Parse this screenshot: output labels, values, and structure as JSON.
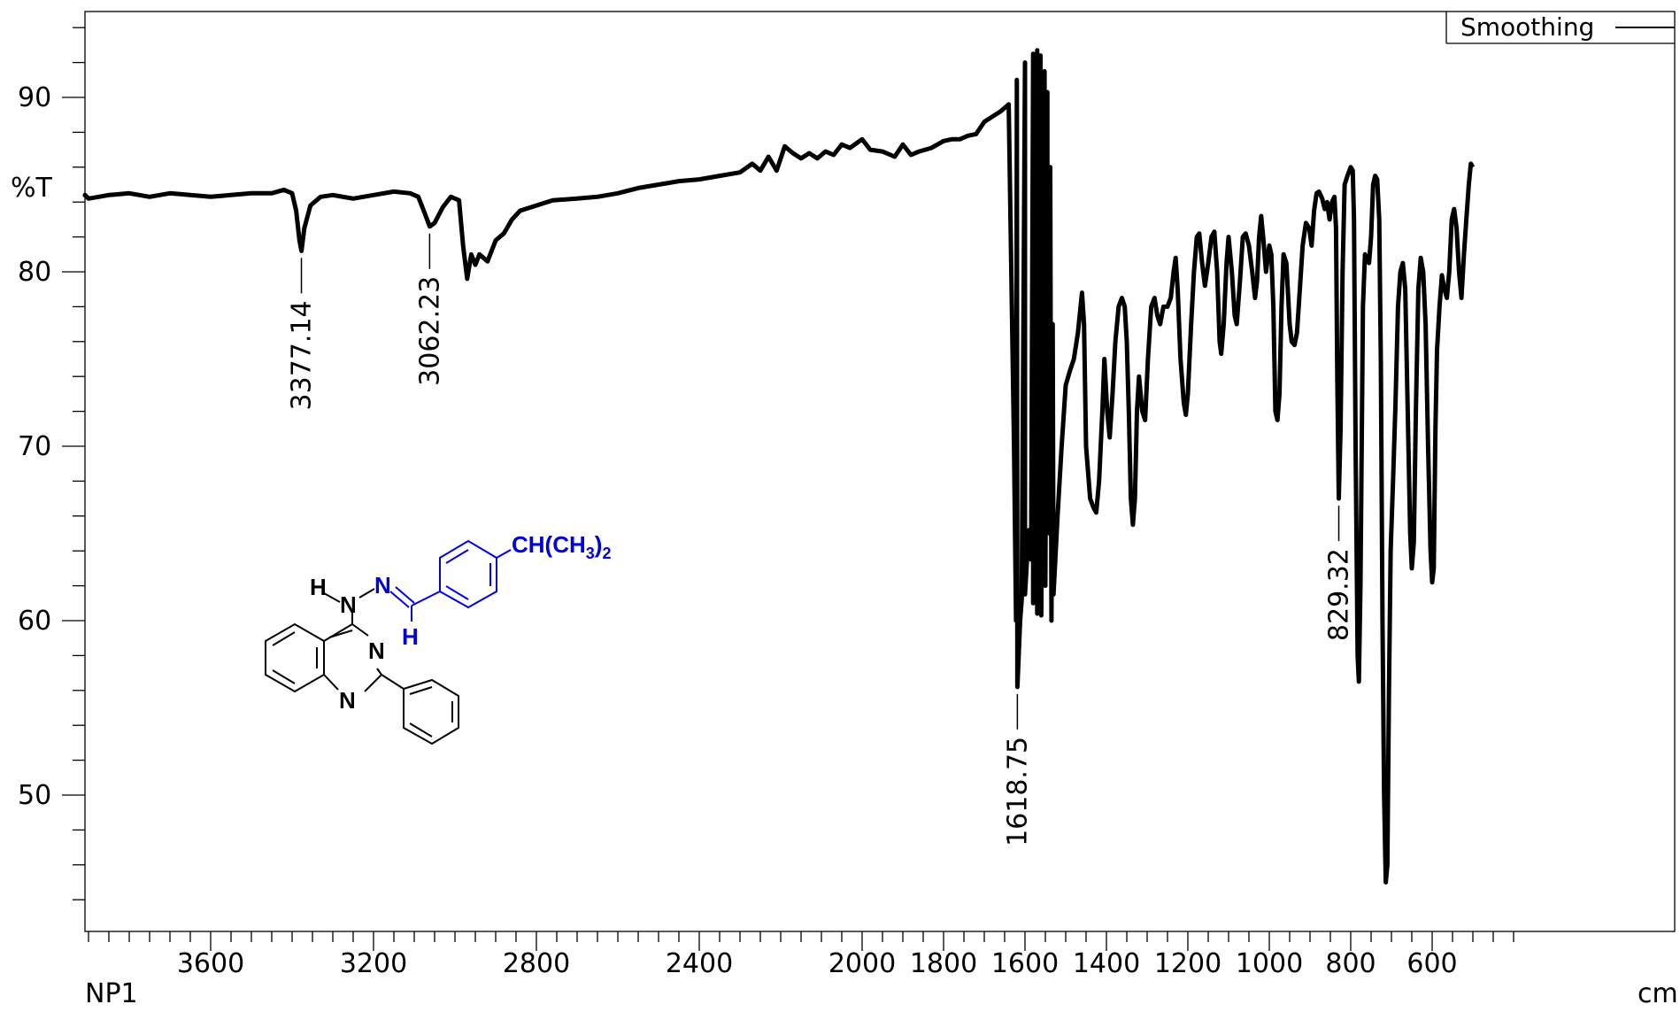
{
  "chart_data": {
    "type": "line",
    "ylabel": "%T",
    "xlabel": "cm",
    "sample_label": "NP1",
    "legend": {
      "label": "Smoothing",
      "placement": "top-right"
    },
    "xlim": [
      4000,
      400
    ],
    "ylim": [
      43,
      96
    ],
    "x_ticks": [
      3600,
      3200,
      2800,
      2400,
      2000,
      1800,
      1600,
      1400,
      1200,
      1000,
      800,
      600
    ],
    "x_tick_labels": [
      "3600",
      "3200",
      "2800",
      "2400",
      "2000",
      "1800",
      "1600",
      "1400",
      "1200",
      "1000",
      "800",
      "600"
    ],
    "y_ticks": [
      50,
      60,
      70,
      80,
      90
    ],
    "y_tick_labels": [
      "50",
      "60",
      "70",
      "80",
      "90"
    ],
    "grid": false,
    "series": [
      {
        "color": "#000000",
        "points": [
          [
            4000,
            84.3
          ],
          [
            3950,
            84.4
          ],
          [
            3900,
            84.2
          ],
          [
            3850,
            84.4
          ],
          [
            3800,
            84.5
          ],
          [
            3750,
            84.3
          ],
          [
            3700,
            84.5
          ],
          [
            3650,
            84.4
          ],
          [
            3600,
            84.3
          ],
          [
            3550,
            84.4
          ],
          [
            3500,
            84.5
          ],
          [
            3450,
            84.5
          ],
          [
            3420,
            84.7
          ],
          [
            3400,
            84.5
          ],
          [
            3390,
            83.5
          ],
          [
            3382,
            81.8
          ],
          [
            3377,
            81.2
          ],
          [
            3370,
            82.5
          ],
          [
            3355,
            83.8
          ],
          [
            3330,
            84.3
          ],
          [
            3300,
            84.4
          ],
          [
            3250,
            84.2
          ],
          [
            3200,
            84.4
          ],
          [
            3150,
            84.6
          ],
          [
            3110,
            84.5
          ],
          [
            3090,
            84.3
          ],
          [
            3075,
            83.4
          ],
          [
            3062,
            82.6
          ],
          [
            3050,
            82.8
          ],
          [
            3030,
            83.7
          ],
          [
            3010,
            84.3
          ],
          [
            2990,
            84.1
          ],
          [
            2980,
            81.5
          ],
          [
            2970,
            79.6
          ],
          [
            2960,
            81.0
          ],
          [
            2950,
            80.4
          ],
          [
            2940,
            81.0
          ],
          [
            2920,
            80.6
          ],
          [
            2900,
            81.8
          ],
          [
            2880,
            82.2
          ],
          [
            2860,
            83.0
          ],
          [
            2840,
            83.5
          ],
          [
            2800,
            83.8
          ],
          [
            2760,
            84.1
          ],
          [
            2700,
            84.2
          ],
          [
            2650,
            84.3
          ],
          [
            2600,
            84.5
          ],
          [
            2550,
            84.8
          ],
          [
            2500,
            85.0
          ],
          [
            2450,
            85.2
          ],
          [
            2400,
            85.3
          ],
          [
            2350,
            85.5
          ],
          [
            2300,
            85.7
          ],
          [
            2270,
            86.2
          ],
          [
            2250,
            85.8
          ],
          [
            2230,
            86.6
          ],
          [
            2210,
            85.8
          ],
          [
            2190,
            87.2
          ],
          [
            2170,
            86.8
          ],
          [
            2150,
            86.5
          ],
          [
            2130,
            86.8
          ],
          [
            2110,
            86.5
          ],
          [
            2090,
            86.9
          ],
          [
            2070,
            86.7
          ],
          [
            2050,
            87.3
          ],
          [
            2030,
            87.1
          ],
          [
            2000,
            87.6
          ],
          [
            1980,
            87.0
          ],
          [
            1950,
            86.9
          ],
          [
            1920,
            86.6
          ],
          [
            1900,
            87.3
          ],
          [
            1880,
            86.7
          ],
          [
            1860,
            86.9
          ],
          [
            1830,
            87.1
          ],
          [
            1800,
            87.5
          ],
          [
            1780,
            87.6
          ],
          [
            1760,
            87.6
          ],
          [
            1740,
            87.8
          ],
          [
            1720,
            87.9
          ],
          [
            1700,
            88.6
          ],
          [
            1680,
            88.9
          ],
          [
            1660,
            89.2
          ],
          [
            1640,
            89.6
          ],
          [
            1620,
            91.0
          ],
          [
            1600,
            92.0
          ],
          [
            1580,
            92.5
          ],
          [
            1570,
            92.7
          ],
          [
            1562,
            92.4
          ],
          [
            1552,
            91.5
          ],
          [
            1545,
            90.3
          ],
          [
            1538,
            86.0
          ],
          [
            1532,
            77.0
          ],
          [
            1627,
            70.0
          ],
          [
            1622,
            60.0
          ],
          [
            1618.75,
            56.2
          ],
          [
            1612,
            60.0
          ],
          [
            1608,
            61.2
          ],
          [
            1600,
            61.5
          ],
          [
            1595,
            63.5
          ],
          [
            1590,
            65.2
          ],
          [
            1585,
            63.5
          ],
          [
            1580,
            61.0
          ],
          [
            1570,
            60.4
          ],
          [
            1560,
            60.3
          ],
          [
            1550,
            62.0
          ],
          [
            1545,
            69.5
          ],
          [
            1540,
            65.0
          ],
          [
            1535,
            60.0
          ],
          [
            1530,
            61.5
          ],
          [
            1520,
            66.0
          ],
          [
            1510,
            70.0
          ],
          [
            1500,
            73.5
          ],
          [
            1490,
            74.3
          ],
          [
            1480,
            75.0
          ],
          [
            1470,
            76.5
          ],
          [
            1460,
            78.8
          ],
          [
            1455,
            77.0
          ],
          [
            1450,
            70.0
          ],
          [
            1440,
            67.0
          ],
          [
            1432,
            66.5
          ],
          [
            1425,
            66.2
          ],
          [
            1418,
            68.0
          ],
          [
            1410,
            72.0
          ],
          [
            1405,
            75.0
          ],
          [
            1398,
            72.0
          ],
          [
            1392,
            70.5
          ],
          [
            1385,
            73.0
          ],
          [
            1378,
            76.0
          ],
          [
            1370,
            78.0
          ],
          [
            1362,
            78.5
          ],
          [
            1355,
            78.0
          ],
          [
            1350,
            76.0
          ],
          [
            1345,
            72.0
          ],
          [
            1340,
            67.0
          ],
          [
            1335,
            65.5
          ],
          [
            1330,
            67.0
          ],
          [
            1325,
            72.0
          ],
          [
            1320,
            74.0
          ],
          [
            1312,
            72.0
          ],
          [
            1305,
            71.5
          ],
          [
            1298,
            75.0
          ],
          [
            1290,
            78.0
          ],
          [
            1282,
            78.5
          ],
          [
            1275,
            77.5
          ],
          [
            1268,
            77.0
          ],
          [
            1260,
            78.0
          ],
          [
            1250,
            78.0
          ],
          [
            1242,
            78.5
          ],
          [
            1235,
            80.0
          ],
          [
            1230,
            80.8
          ],
          [
            1225,
            79.0
          ],
          [
            1218,
            75.0
          ],
          [
            1210,
            72.5
          ],
          [
            1205,
            71.8
          ],
          [
            1200,
            73.0
          ],
          [
            1192,
            77.0
          ],
          [
            1185,
            80.0
          ],
          [
            1178,
            82.0
          ],
          [
            1172,
            82.2
          ],
          [
            1165,
            80.5
          ],
          [
            1158,
            79.2
          ],
          [
            1150,
            80.5
          ],
          [
            1142,
            82.0
          ],
          [
            1135,
            82.3
          ],
          [
            1128,
            80.0
          ],
          [
            1122,
            76.0
          ],
          [
            1118,
            75.3
          ],
          [
            1112,
            77.0
          ],
          [
            1105,
            80.5
          ],
          [
            1100,
            82.0
          ],
          [
            1092,
            80.0
          ],
          [
            1085,
            77.5
          ],
          [
            1080,
            77.0
          ],
          [
            1072,
            79.5
          ],
          [
            1065,
            82.0
          ],
          [
            1058,
            82.2
          ],
          [
            1050,
            81.5
          ],
          [
            1042,
            80.0
          ],
          [
            1035,
            78.5
          ],
          [
            1030,
            79.5
          ],
          [
            1025,
            82.0
          ],
          [
            1020,
            83.2
          ],
          [
            1015,
            82.0
          ],
          [
            1008,
            80.0
          ],
          [
            1000,
            81.5
          ],
          [
            995,
            81.0
          ],
          [
            990,
            78.0
          ],
          [
            985,
            72.0
          ],
          [
            980,
            71.5
          ],
          [
            975,
            73.0
          ],
          [
            970,
            78.0
          ],
          [
            965,
            81.0
          ],
          [
            958,
            80.5
          ],
          [
            950,
            77.0
          ],
          [
            945,
            76.0
          ],
          [
            938,
            75.8
          ],
          [
            932,
            76.5
          ],
          [
            925,
            79.0
          ],
          [
            918,
            81.5
          ],
          [
            910,
            82.8
          ],
          [
            902,
            82.5
          ],
          [
            896,
            81.5
          ],
          [
            890,
            83.5
          ],
          [
            884,
            84.5
          ],
          [
            878,
            84.6
          ],
          [
            870,
            84.2
          ],
          [
            864,
            83.6
          ],
          [
            858,
            84.0
          ],
          [
            852,
            83.0
          ],
          [
            846,
            84.0
          ],
          [
            840,
            84.3
          ],
          [
            836,
            82.5
          ],
          [
            833,
            74.0
          ],
          [
            829.32,
            67.0
          ],
          [
            825,
            71.0
          ],
          [
            820,
            80.0
          ],
          [
            815,
            85.0
          ],
          [
            808,
            85.5
          ],
          [
            800,
            86.0
          ],
          [
            795,
            85.8
          ],
          [
            792,
            83.0
          ],
          [
            788,
            70.0
          ],
          [
            783,
            58.0
          ],
          [
            780,
            56.5
          ],
          [
            776,
            62.0
          ],
          [
            770,
            78.0
          ],
          [
            765,
            81.0
          ],
          [
            760,
            80.8
          ],
          [
            755,
            80.5
          ],
          [
            750,
            82.0
          ],
          [
            745,
            85.0
          ],
          [
            740,
            85.5
          ],
          [
            735,
            85.3
          ],
          [
            730,
            83.0
          ],
          [
            726,
            75.0
          ],
          [
            722,
            60.0
          ],
          [
            718,
            50.0
          ],
          [
            714,
            45.0
          ],
          [
            710,
            46.0
          ],
          [
            706,
            56.0
          ],
          [
            702,
            64.0
          ],
          [
            696,
            68.0
          ],
          [
            690,
            72.5
          ],
          [
            684,
            78.0
          ],
          [
            678,
            80.0
          ],
          [
            672,
            80.5
          ],
          [
            666,
            79.0
          ],
          [
            660,
            72.0
          ],
          [
            654,
            65.0
          ],
          [
            650,
            63.0
          ],
          [
            645,
            64.5
          ],
          [
            640,
            72.0
          ],
          [
            634,
            79.0
          ],
          [
            628,
            80.8
          ],
          [
            622,
            80.0
          ],
          [
            616,
            77.0
          ],
          [
            610,
            70.0
          ],
          [
            604,
            64.0
          ],
          [
            600,
            62.2
          ],
          [
            596,
            63.0
          ],
          [
            592,
            71.0
          ],
          [
            588,
            75.5
          ],
          [
            582,
            78.0
          ],
          [
            576,
            79.8
          ],
          [
            570,
            79.0
          ],
          [
            564,
            78.5
          ],
          [
            558,
            80.0
          ],
          [
            552,
            83.0
          ],
          [
            546,
            83.6
          ],
          [
            540,
            82.5
          ],
          [
            534,
            80.0
          ],
          [
            528,
            78.5
          ],
          [
            522,
            81.0
          ],
          [
            516,
            83.0
          ],
          [
            510,
            85.0
          ],
          [
            505,
            86.2
          ],
          [
            500,
            86.0
          ]
        ]
      }
    ],
    "annotations": [
      {
        "x": 3377.14,
        "y": 81.2,
        "text": "3377.14"
      },
      {
        "x": 3062.23,
        "y": 82.6,
        "text": "3062.23"
      },
      {
        "x": 1618.75,
        "y": 56.2,
        "text": "1618.75"
      },
      {
        "x": 829.32,
        "y": 67.0,
        "text": "829.32"
      }
    ]
  },
  "structure_labels": {
    "h_nh": "H",
    "n_nh": "N",
    "n_imine": "N",
    "h_imine": "H",
    "n_ring1": "N",
    "n_ring2": "N",
    "substituent": "CH(CH",
    "substituent_sub3": "3",
    "substituent_close": ")",
    "substituent_sub2": "2"
  }
}
